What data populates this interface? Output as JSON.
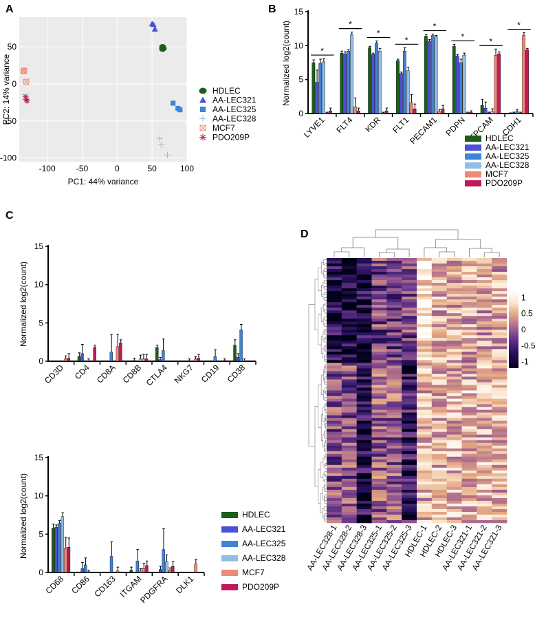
{
  "panels": {
    "A": "A",
    "B": "B",
    "C": "C",
    "D": "D"
  },
  "colors": {
    "HDLEC": "#1a5e1a",
    "AA-LEC321": "#4b50d8",
    "AA-LEC325": "#3f84d6",
    "AA-LEC328": "#94bde6",
    "MCF7": "#f08878",
    "PDO209P": "#c3175a"
  },
  "chart_data": [
    {
      "id": "A",
      "type": "scatter",
      "xlabel": "PC1: 44% variance",
      "ylabel": "PC2: 14% variance",
      "xlim": [
        -140,
        100
      ],
      "ylim": [
        -105,
        90
      ],
      "xticks": [
        -100,
        -50,
        0,
        50,
        100
      ],
      "yticks": [
        -100,
        -50,
        0,
        50
      ],
      "series": [
        {
          "name": "HDLEC",
          "marker": "circle",
          "points": [
            [
              65,
              50
            ],
            [
              66,
              48
            ],
            [
              65,
              47
            ]
          ]
        },
        {
          "name": "AA-LEC321",
          "marker": "triangle",
          "points": [
            [
              50,
              81
            ],
            [
              54,
              74
            ],
            [
              52,
              80
            ]
          ]
        },
        {
          "name": "AA-LEC325",
          "marker": "square",
          "points": [
            [
              80,
              -26
            ],
            [
              87,
              -33
            ],
            [
              90,
              -35
            ]
          ]
        },
        {
          "name": "AA-LEC328",
          "marker": "plus",
          "points": [
            [
              61,
              -74
            ],
            [
              63,
              -82
            ],
            [
              72,
              -96
            ]
          ]
        },
        {
          "name": "MCF7",
          "marker": "boxx",
          "points": [
            [
              -133,
              18
            ],
            [
              -134,
              17
            ],
            [
              -130,
              3
            ]
          ]
        },
        {
          "name": "PDO209P",
          "marker": "asterisk",
          "points": [
            [
              -131,
              -17
            ],
            [
              -130,
              -21
            ],
            [
              -129,
              -23
            ]
          ]
        }
      ]
    },
    {
      "id": "B",
      "type": "bar",
      "ylabel": "Normalized log2(count)",
      "ylim": [
        0,
        15
      ],
      "yticks": [
        0,
        5,
        10,
        15
      ],
      "categories": [
        "LYVE1",
        "FLT4",
        "KDR",
        "FLT1",
        "PECAM1",
        "PDPN",
        "EPCAM",
        "CDH1"
      ],
      "significance": "*",
      "series": [
        {
          "name": "HDLEC",
          "values": [
            7.5,
            8.9,
            9.7,
            7.8,
            11.4,
            9.9,
            1.2,
            0.05
          ],
          "errors": [
            0.4,
            0.3,
            0.2,
            0.2,
            0.2,
            0.3,
            0.9,
            0.05
          ]
        },
        {
          "name": "AA-LEC321",
          "values": [
            4.6,
            8.8,
            8.7,
            5.9,
            10.7,
            8.5,
            0.8,
            0.1
          ],
          "errors": [
            1.8,
            0.3,
            0.2,
            0.2,
            0.2,
            0.2,
            0.9,
            0.1
          ]
        },
        {
          "name": "AA-LEC325",
          "values": [
            7.4,
            9.2,
            10.4,
            9.2,
            11.5,
            7.5,
            0.1,
            0.3
          ],
          "errors": [
            0.6,
            0.2,
            0.3,
            0.5,
            0.2,
            0.5,
            0.1,
            0.3
          ]
        },
        {
          "name": "AA-LEC328",
          "values": [
            7.6,
            11.6,
            9.2,
            6.3,
            11.3,
            8.6,
            0.3,
            0.1
          ],
          "errors": [
            0.5,
            0.4,
            0.4,
            0.5,
            0.2,
            0.3,
            0.4,
            0.1
          ]
        },
        {
          "name": "MCF7",
          "values": [
            0.1,
            1.0,
            0.1,
            1.6,
            0.3,
            0.1,
            8.6,
            11.5
          ],
          "errors": [
            0.1,
            1.3,
            0.1,
            1.2,
            0.3,
            0.1,
            0.9,
            0.4
          ]
        },
        {
          "name": "PDO209P",
          "values": [
            0.4,
            0.4,
            0.4,
            0.7,
            0.7,
            0.2,
            8.8,
            9.4
          ],
          "errors": [
            0.4,
            0.4,
            0.4,
            0.7,
            0.5,
            0.2,
            0.3,
            0.2
          ]
        }
      ]
    },
    {
      "id": "C-top",
      "type": "bar",
      "ylabel": "Normalized log2(count)",
      "ylim": [
        0,
        15
      ],
      "yticks": [
        0,
        5,
        10,
        15
      ],
      "categories": [
        "CD3D",
        "CD4",
        "CD8A",
        "CD8B",
        "CTLA4",
        "NKG7",
        "CD19",
        "CD38"
      ],
      "series": [
        {
          "name": "HDLEC",
          "values": [
            0,
            0.6,
            0,
            0,
            1.8,
            0,
            0,
            2.1
          ],
          "errors": [
            0,
            0.5,
            0,
            0,
            0.3,
            0,
            0,
            0.7
          ]
        },
        {
          "name": "AA-LEC321",
          "values": [
            0,
            1.0,
            0,
            0.1,
            0.2,
            0,
            0,
            0.5
          ],
          "errors": [
            0,
            1.2,
            0,
            0.3,
            0.3,
            0,
            0,
            0.5
          ]
        },
        {
          "name": "AA-LEC325",
          "values": [
            0,
            0,
            1.2,
            0,
            1.4,
            0.1,
            0.6,
            4.1
          ],
          "errors": [
            0,
            0,
            2.3,
            0,
            1.5,
            0.2,
            0.9,
            0.7
          ]
        },
        {
          "name": "AA-LEC328",
          "values": [
            0,
            0.1,
            0,
            0.3,
            0,
            0,
            0,
            0.1
          ],
          "errors": [
            0,
            0.2,
            0,
            0.5,
            0,
            0,
            0,
            0.2
          ]
        },
        {
          "name": "MCF7",
          "values": [
            0.3,
            0,
            1.9,
            0.3,
            0,
            0.3,
            0,
            0
          ],
          "errors": [
            0.4,
            0,
            1.6,
            0.6,
            0,
            0.3,
            0,
            0
          ]
        },
        {
          "name": "PDO209P",
          "values": [
            0.4,
            1.8,
            2.4,
            0.3,
            0,
            0.4,
            0.1,
            0
          ],
          "errors": [
            0.6,
            0.3,
            0.4,
            0.6,
            0,
            0.5,
            0.2,
            0
          ]
        }
      ]
    },
    {
      "id": "C-bottom",
      "type": "bar",
      "ylabel": "Normalized log2(count)",
      "ylim": [
        0,
        15
      ],
      "yticks": [
        0,
        5,
        10,
        15
      ],
      "categories": [
        "CD68",
        "CD86",
        "CD163",
        "ITGAM",
        "PDGFRA",
        "DLK1"
      ],
      "series": [
        {
          "name": "HDLEC",
          "values": [
            5.8,
            0,
            0,
            0.3,
            0,
            0
          ],
          "errors": [
            0.5,
            0,
            0,
            0.4,
            0,
            0
          ]
        },
        {
          "name": "AA-LEC321",
          "values": [
            5.9,
            0.5,
            0,
            0,
            0.4,
            0
          ],
          "errors": [
            0.3,
            0.8,
            0,
            0,
            0.4,
            0
          ]
        },
        {
          "name": "AA-LEC325",
          "values": [
            6.4,
            1.0,
            2.1,
            1.5,
            3.0,
            0
          ],
          "errors": [
            0.4,
            0.9,
            1.9,
            1.5,
            2.7,
            0
          ]
        },
        {
          "name": "AA-LEC328",
          "values": [
            7.3,
            0.1,
            0,
            0.2,
            1.4,
            0
          ],
          "errors": [
            0.5,
            0.2,
            0,
            0.3,
            0.9,
            0
          ]
        },
        {
          "name": "MCF7",
          "values": [
            3.2,
            0,
            0.2,
            0.5,
            0.3,
            1.1
          ],
          "errors": [
            1.4,
            0,
            0.5,
            0.7,
            0.3,
            0.6
          ]
        },
        {
          "name": "PDO209P",
          "values": [
            3.3,
            0,
            0,
            0.9,
            0.8,
            0
          ],
          "errors": [
            1.2,
            0,
            0,
            0.6,
            0.6,
            0
          ]
        }
      ]
    },
    {
      "id": "D",
      "type": "heatmap",
      "columns": [
        "AA-LEC328-1",
        "AA-LEC328-2",
        "AA-LEC328-3",
        "AA-LEC325-1",
        "AA-LEC325-2",
        "AA-LEC325-3",
        "HDLEC-1",
        "HDLEC-2",
        "HDLEC-3",
        "AA-LEC321-1",
        "AA-LEC321-2",
        "AA-LEC321-3"
      ],
      "colorbar_ticks": [
        1,
        0.5,
        0,
        -0.5,
        -1
      ],
      "colorscale": [
        "#000018",
        "#2a1060",
        "#6b3a8c",
        "#b06f8d",
        "#e5a883",
        "#fbe7cf",
        "#ffffff"
      ]
    }
  ]
}
